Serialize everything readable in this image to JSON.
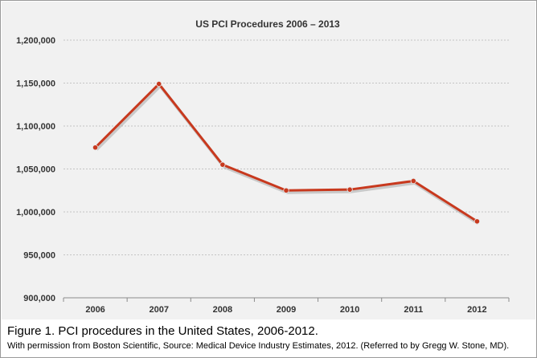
{
  "chart_data": {
    "type": "line",
    "title": "US PCI Procedures 2006 – 2013",
    "xlabel": "",
    "ylabel": "",
    "categories": [
      "2006",
      "2007",
      "2008",
      "2009",
      "2010",
      "2011",
      "2012"
    ],
    "series": [
      {
        "name": "US PCI Procedures",
        "values": [
          1075000,
          1149000,
          1055000,
          1025000,
          1026000,
          1036000,
          989000
        ]
      }
    ],
    "ylim": [
      900000,
      1200000
    ],
    "yticks": [
      900000,
      950000,
      1000000,
      1050000,
      1100000,
      1150000,
      1200000
    ],
    "ytick_labels": [
      "900,000",
      "950,000",
      "1,000,000",
      "1,050,000",
      "1,100,000",
      "1,150,000",
      "1,200,000"
    ],
    "grid": true,
    "line_color": "#c8391e"
  },
  "caption": {
    "title": "Figure 1. PCI procedures in the United States, 2006-2012.",
    "credit": "With permission from Boston Scientific, Source: Medical Device Industry Estimates, 2012. (Referred to by Gregg W. Stone, MD)."
  }
}
